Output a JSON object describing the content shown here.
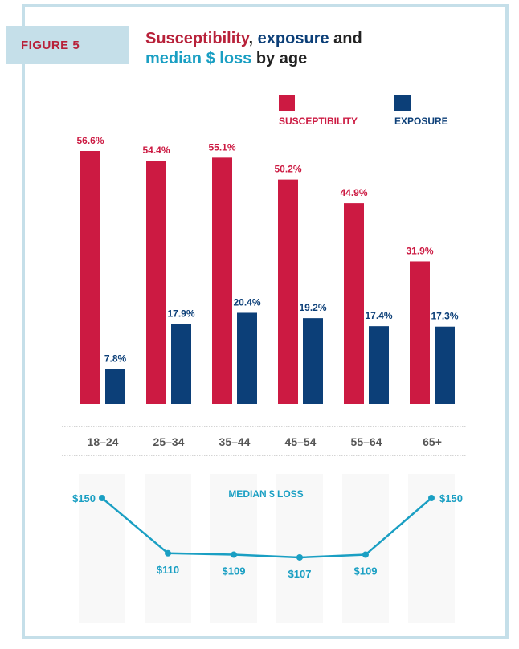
{
  "figure_label": "FIGURE 5",
  "title": {
    "part1": "Susceptibility",
    "part2": ", ",
    "part3": "exposure",
    "part4": " and",
    "part5": "median $ loss",
    "part6": " by age"
  },
  "colors": {
    "susceptibility": "#cc1a42",
    "exposure": "#0c3f78",
    "median": "#1a9fc3",
    "frame": "#c5dfe9"
  },
  "chart_data": [
    {
      "type": "bar",
      "categories": [
        "18–24",
        "25–34",
        "35–44",
        "45–54",
        "55–64",
        "65+"
      ],
      "series": [
        {
          "name": "SUSCEPTIBILITY",
          "values": [
            56.6,
            54.4,
            55.1,
            50.2,
            44.9,
            31.9
          ],
          "labels": [
            "56.6%",
            "54.4%",
            "55.1%",
            "50.2%",
            "44.9%",
            "31.9%"
          ]
        },
        {
          "name": "EXPOSURE",
          "values": [
            7.8,
            17.9,
            20.4,
            19.2,
            17.4,
            17.3
          ],
          "labels": [
            "7.8%",
            "17.9%",
            "20.4%",
            "19.2%",
            "17.4%",
            "17.3%"
          ]
        }
      ],
      "ylim": [
        0,
        60
      ],
      "legend": "top-right",
      "grid": false
    },
    {
      "type": "line",
      "title": "MEDIAN $ LOSS",
      "categories": [
        "18–24",
        "25–34",
        "35–44",
        "45–54",
        "55–64",
        "65+"
      ],
      "values": [
        150,
        110,
        109,
        107,
        109,
        150
      ],
      "labels": [
        "$150",
        "$110",
        "$109",
        "$107",
        "$109",
        "$150"
      ]
    }
  ]
}
